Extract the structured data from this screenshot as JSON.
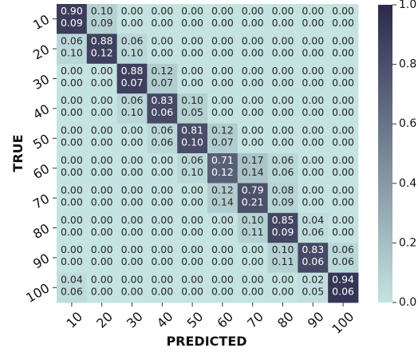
{
  "chart_data": {
    "type": "heatmap",
    "title": "",
    "xlabel": "PREDICTED",
    "ylabel": "TRUE",
    "x_categories": [
      "10",
      "20",
      "30",
      "40",
      "50",
      "60",
      "70",
      "80",
      "90",
      "100"
    ],
    "y_categories": [
      "10",
      "20",
      "30",
      "40",
      "50",
      "60",
      "70",
      "80",
      "90",
      "100"
    ],
    "colorbar": {
      "range": [
        0.0,
        1.0
      ],
      "ticks": [
        "0.0",
        "0.2",
        "0.4",
        "0.6",
        "0.8",
        "1.0"
      ],
      "low_color": "#c4e3e1",
      "high_color": "#2c2a4c"
    },
    "cells_primary": [
      [
        "0.90",
        "0.10",
        "0.00",
        "0.00",
        "0.00",
        "0.00",
        "0.00",
        "0.00",
        "0.00",
        "0.00"
      ],
      [
        "0.06",
        "0.88",
        "0.06",
        "0.00",
        "0.00",
        "0.00",
        "0.00",
        "0.00",
        "0.00",
        "0.00"
      ],
      [
        "0.00",
        "0.00",
        "0.88",
        "0.12",
        "0.00",
        "0.00",
        "0.00",
        "0.00",
        "0.00",
        "0.00"
      ],
      [
        "0.00",
        "0.00",
        "0.06",
        "0.83",
        "0.10",
        "0.00",
        "0.00",
        "0.00",
        "0.00",
        "0.00"
      ],
      [
        "0.00",
        "0.00",
        "0.00",
        "0.06",
        "0.81",
        "0.12",
        "0.00",
        "0.00",
        "0.00",
        "0.00"
      ],
      [
        "0.00",
        "0.00",
        "0.00",
        "0.00",
        "0.06",
        "0.71",
        "0.17",
        "0.06",
        "0.00",
        "0.00"
      ],
      [
        "0.00",
        "0.00",
        "0.00",
        "0.00",
        "0.00",
        "0.12",
        "0.79",
        "0.08",
        "0.00",
        "0.00"
      ],
      [
        "0.00",
        "0.00",
        "0.00",
        "0.00",
        "0.00",
        "0.00",
        "0.10",
        "0.85",
        "0.04",
        "0.00"
      ],
      [
        "0.00",
        "0.00",
        "0.00",
        "0.00",
        "0.00",
        "0.00",
        "0.00",
        "0.10",
        "0.83",
        "0.06"
      ],
      [
        "0.04",
        "0.00",
        "0.00",
        "0.00",
        "0.00",
        "0.00",
        "0.00",
        "0.00",
        "0.02",
        "0.94"
      ]
    ],
    "cells_secondary": [
      [
        "0.09",
        "0.09",
        "0.00",
        "0.00",
        "0.00",
        "0.00",
        "0.00",
        "0.00",
        "0.00",
        "0.00"
      ],
      [
        "0.10",
        "0.12",
        "0.10",
        "0.00",
        "0.00",
        "0.00",
        "0.00",
        "0.00",
        "0.00",
        "0.00"
      ],
      [
        "0.00",
        "0.00",
        "0.07",
        "0.07",
        "0.00",
        "0.00",
        "0.00",
        "0.00",
        "0.00",
        "0.00"
      ],
      [
        "0.00",
        "0.00",
        "0.10",
        "0.06",
        "0.05",
        "0.00",
        "0.00",
        "0.00",
        "0.00",
        "0.00"
      ],
      [
        "0.00",
        "0.00",
        "0.00",
        "0.06",
        "0.10",
        "0.07",
        "0.00",
        "0.00",
        "0.00",
        "0.00"
      ],
      [
        "0.00",
        "0.00",
        "0.00",
        "0.00",
        "0.10",
        "0.12",
        "0.14",
        "0.06",
        "0.00",
        "0.00"
      ],
      [
        "0.00",
        "0.00",
        "0.00",
        "0.00",
        "0.00",
        "0.14",
        "0.21",
        "0.09",
        "0.00",
        "0.00"
      ],
      [
        "0.00",
        "0.00",
        "0.00",
        "0.00",
        "0.00",
        "0.00",
        "0.11",
        "0.09",
        "0.06",
        "0.00"
      ],
      [
        "0.00",
        "0.00",
        "0.00",
        "0.00",
        "0.00",
        "0.00",
        "0.00",
        "0.11",
        "0.06",
        "0.06"
      ],
      [
        "0.06",
        "0.00",
        "0.00",
        "0.00",
        "0.00",
        "0.00",
        "0.00",
        "0.00",
        "0.05",
        "0.06"
      ]
    ]
  }
}
